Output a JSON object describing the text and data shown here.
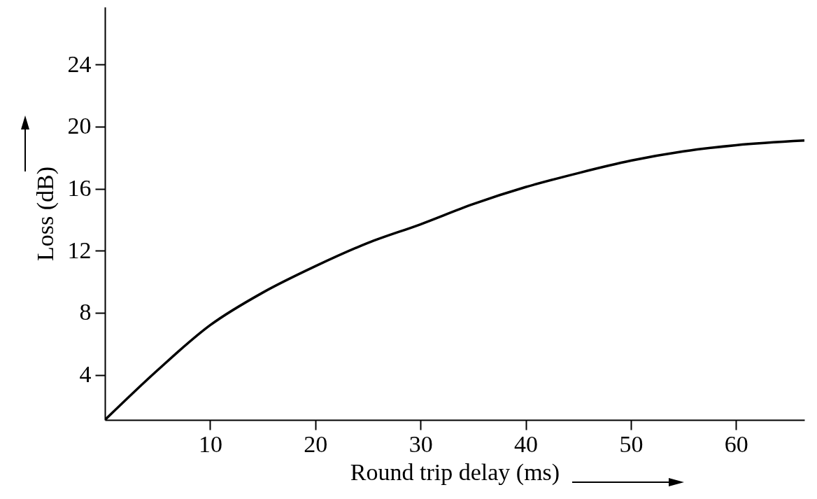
{
  "chart_data": {
    "type": "line",
    "xlabel": "Round trip delay (ms)",
    "ylabel": "Loss (dB)",
    "x": [
      0,
      5,
      10,
      15,
      20,
      25,
      30,
      35,
      40,
      45,
      50,
      55,
      60,
      66.5
    ],
    "series": [
      {
        "color": "#000000",
        "values": [
          1.1,
          4.3,
          7.2,
          9.3,
          11.0,
          12.5,
          13.7,
          15.0,
          16.1,
          17.0,
          17.8,
          18.4,
          18.8,
          19.1
        ]
      }
    ],
    "xlim": [
      0,
      66.5
    ],
    "ylim": [
      1.1,
      27.7
    ],
    "xticks": [
      10,
      20,
      30,
      40,
      50,
      60
    ],
    "yticks": [
      4,
      8,
      12,
      16,
      20,
      24
    ],
    "grid": false,
    "marker": "none",
    "line_style": "solid"
  }
}
